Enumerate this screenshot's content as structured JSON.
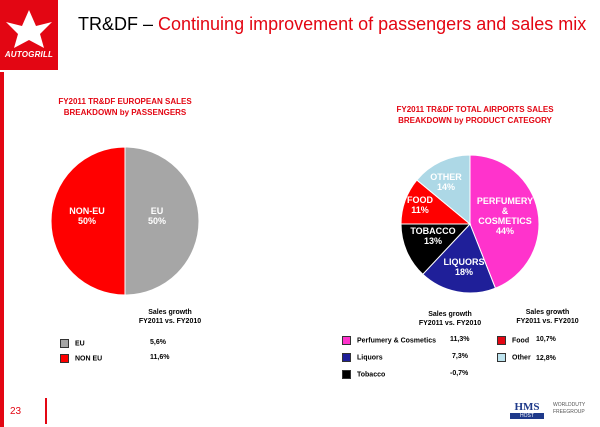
{
  "header": {
    "logo_text": "AUTOGRILL",
    "title_prefix": "TR&DF – ",
    "title_accent": "Continuing improvement of passengers and sales mix"
  },
  "left_section": {
    "title": "FY2011 TR&DF EUROPEAN SALES\nBREAKDOWN by PASSENGERS",
    "sales_growth_header": "Sales growth\nFY2011 vs. FY2010",
    "legend": [
      {
        "label": "EU",
        "value": "5,6%",
        "color": "#a6a6a6"
      },
      {
        "label": "NON EU",
        "value": "11,6%",
        "color": "#ff0000"
      }
    ]
  },
  "right_section": {
    "title": "FY2011 TR&DF TOTAL AIRPORTS SALES\nBREAKDOWN by PRODUCT CATEGORY",
    "sales_growth_header_1": "Sales growth\nFY2011 vs. FY2010",
    "sales_growth_header_2": "Sales growth\nFY2011 vs. FY2010",
    "legend_col1": [
      {
        "label": "Perfumery & Cosmetics",
        "value": "11,3%",
        "color": "#ff33cc"
      },
      {
        "label": "Liquors",
        "value": "7,3%",
        "color": "#1f1f99"
      },
      {
        "label": "Tobacco",
        "value": "-0,7%",
        "color": "#000000"
      }
    ],
    "legend_col2": [
      {
        "label": "Food",
        "value": "10,7%",
        "color": "#e30613"
      },
      {
        "label": "Other",
        "value": "12,8%",
        "color": "#bde3ee"
      }
    ]
  },
  "chart_data": [
    {
      "type": "pie",
      "title": "FY2011 TR&DF EUROPEAN SALES BREAKDOWN by PASSENGERS",
      "slices": [
        {
          "label": "EU",
          "value_label": "50%",
          "value": 50,
          "color": "#a6a6a6"
        },
        {
          "label": "NON-EU",
          "value_label": "50%",
          "value": 50,
          "color": "#ff0000"
        }
      ]
    },
    {
      "type": "pie",
      "title": "FY2011 TR&DF TOTAL AIRPORTS SALES BREAKDOWN by PRODUCT CATEGORY",
      "slices": [
        {
          "label": "PERFUMERY\n&\nCOSMETICS",
          "value_label": "44%",
          "value": 44,
          "color": "#ff33cc"
        },
        {
          "label": "LIQUORS",
          "value_label": "18%",
          "value": 18,
          "color": "#1f1f99"
        },
        {
          "label": "TOBACCO",
          "value_label": "13%",
          "value": 13,
          "color": "#000000"
        },
        {
          "label": "FOOD",
          "value_label": "11%",
          "value": 11,
          "color": "#ff0000"
        },
        {
          "label": "OTHER",
          "value_label": "14%",
          "value": 14,
          "color": "#add8e6"
        }
      ]
    }
  ],
  "footer": {
    "page_number": "23",
    "logo1_text": "HMS",
    "logo1_sub": "HOST",
    "logo2_text": "WORLDDUTY",
    "logo2_sub": "FREEGROUP"
  }
}
